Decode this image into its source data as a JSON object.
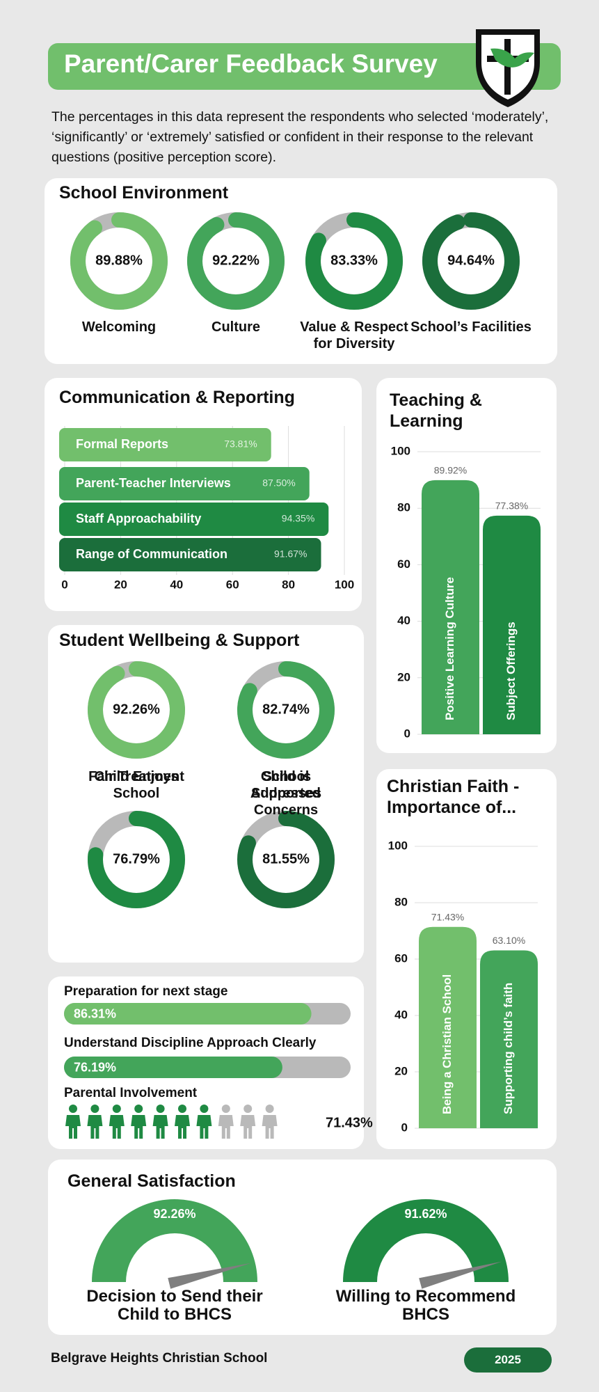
{
  "header": {
    "title": "Parent/Carer Feedback Survey",
    "intro": "The percentages in this data represent the respondents who selected ‘moderately’, ‘significantly’ or ‘extremely’ satisfied or confident in their response to the relevant questions (positive perception score)."
  },
  "chart_data": [
    {
      "type": "donut",
      "title": "School Environment",
      "categories": [
        "Welcoming",
        "Culture",
        "Value & Respect for Diversity",
        "School’s Facilities"
      ],
      "values": [
        89.88,
        92.22,
        83.33,
        94.64
      ],
      "value_labels": [
        "89.88%",
        "92.22%",
        "83.33%",
        "94.64%"
      ],
      "colors": [
        "#72bf6c",
        "#43a55a",
        "#1f8a43",
        "#1b6e3b"
      ],
      "track_color": "#b9b9b9"
    },
    {
      "type": "hbar",
      "title": "Communication & Reporting",
      "categories": [
        "Formal Reports",
        "Parent-Teacher Interviews",
        "Staff Approachability",
        "Range of Communication"
      ],
      "values": [
        73.81,
        87.5,
        94.35,
        91.67
      ],
      "value_labels": [
        "73.81%",
        "87.50%",
        "94.35%",
        "91.67%"
      ],
      "colors": [
        "#72bf6c",
        "#43a55a",
        "#1f8a43",
        "#1b6e3b"
      ],
      "xlim": [
        0,
        100
      ],
      "xticks": [
        0,
        20,
        40,
        60,
        80,
        100
      ],
      "grid": true
    },
    {
      "type": "bar",
      "title": "Teaching & Learning",
      "categories": [
        "Positive Learning Culture",
        "Subject Offerings"
      ],
      "values": [
        89.92,
        77.38
      ],
      "value_labels": [
        "89.92%",
        "77.38%"
      ],
      "colors": [
        "#43a55a",
        "#1f8a43"
      ],
      "ylim": [
        0,
        100
      ],
      "yticks": [
        0,
        20,
        40,
        60,
        80,
        100
      ],
      "grid": true
    },
    {
      "type": "donut",
      "title": "Student Wellbeing & Support",
      "categories": [
        "Child Enjoys School",
        "Child is Supported",
        "Fair Treatment",
        "School Addresses Concerns"
      ],
      "values": [
        92.26,
        82.74,
        76.79,
        81.55
      ],
      "value_labels": [
        "92.26%",
        "82.74%",
        "76.79%",
        "81.55%"
      ],
      "colors": [
        "#72bf6c",
        "#43a55a",
        "#1f8a43",
        "#1b6e3b"
      ],
      "track_color": "#b9b9b9"
    },
    {
      "type": "bar",
      "title": "Christian Faith - Importance of...",
      "categories": [
        "Being a Christian School",
        "Supporting child’s faith"
      ],
      "values": [
        71.43,
        63.1
      ],
      "value_labels": [
        "71.43%",
        "63.10%"
      ],
      "colors": [
        "#72bf6c",
        "#43a55a"
      ],
      "ylim": [
        0,
        100
      ],
      "yticks": [
        0,
        20,
        40,
        60,
        80,
        100
      ],
      "grid": true
    },
    {
      "type": "progress",
      "categories": [
        "Preparation for next stage",
        "Understand Discipline Approach Clearly"
      ],
      "values": [
        86.31,
        76.19
      ],
      "value_labels": [
        "86.31%",
        "76.19%"
      ],
      "colors": [
        "#72bf6c",
        "#43a55a"
      ],
      "track_color": "#b9b9b9"
    },
    {
      "type": "pictogram",
      "title": "Parental Involvement",
      "value": 71.43,
      "value_label": "71.43%",
      "icons": 10,
      "color": "#1f8a43",
      "track_color": "#b9b9b9"
    },
    {
      "type": "gauge",
      "title": "General Satisfaction",
      "categories": [
        "Decision to Send their Child to BHCS",
        "Willing to Recommend BHCS"
      ],
      "values": [
        92.26,
        91.62
      ],
      "value_labels": [
        "92.26%",
        "91.62%"
      ],
      "colors": [
        "#43a55a",
        "#1f8a43"
      ],
      "needle_color": "#7f7f7f"
    }
  ],
  "footer": {
    "school": "Belgrave Heights Christian School",
    "year": "2025"
  }
}
